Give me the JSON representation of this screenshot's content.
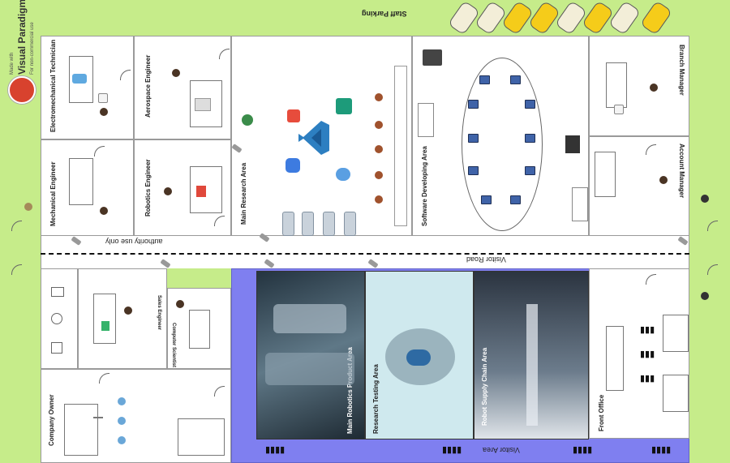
{
  "watermark": {
    "line1": "Made with",
    "line2": "Visual Paradigm",
    "line3": "For non-commercial use"
  },
  "areas": {
    "staff_parking": "Staff Parking",
    "authority_road": "authority use only",
    "visitor_road": "Visitor Road",
    "visitor_area": "Visitor Area",
    "main_research": "Main Research Area",
    "software": "Software Developing Area",
    "robotics_product": "Main Robotics Product Area",
    "research_testing": "Research Testing Area",
    "supply_chain": "Robot Supply Chain Area",
    "front_office": "Front Office"
  },
  "rooms": {
    "electromechanical": "Electromechanical Technician",
    "aerospace": "Aerospace Engineer",
    "mechanical": "Mechanical Engineer",
    "robotics": "Robotics Engineer",
    "branch_manager": "Branch Manager",
    "account_manager": "Account Manager",
    "sales_engineer": "Sales Engineer",
    "computer_scientist": "Computer Scientist",
    "company_owner": "Company Owner"
  },
  "colors": {
    "grass": "#c6ec8a",
    "visitor_area": "#7f7ff0",
    "car_white": "#f3eed8",
    "car_yellow": "#f5cc1a",
    "testing_area": "#cfe9ee"
  },
  "icons": {
    "car": "car-icon",
    "person": "person-icon",
    "door": "door-icon",
    "camera": "cctv-camera-icon",
    "laptop": "laptop-icon",
    "server": "server-rack-icon",
    "crowd": "crowd-icon"
  }
}
